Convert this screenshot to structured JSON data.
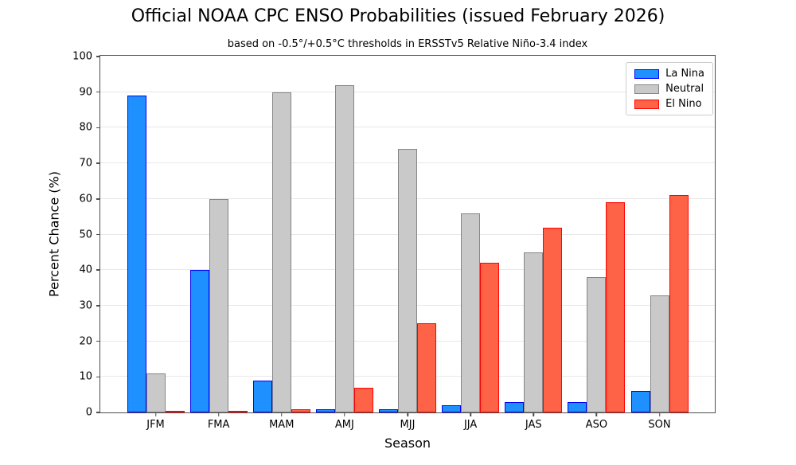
{
  "title": "Official NOAA CPC ENSO Probabilities (issued February 2026)",
  "subtitle": "based on -0.5°/+0.5°C thresholds in ERSSTv5 Relative Niño-3.4 index",
  "chart_data": {
    "type": "bar",
    "categories": [
      "JFM",
      "FMA",
      "MAM",
      "AMJ",
      "MJJ",
      "JJA",
      "JAS",
      "ASO",
      "SON"
    ],
    "series": [
      {
        "name": "La Nina",
        "fill": "#1e90ff",
        "edge": "#0000ff",
        "values": [
          89,
          40,
          9,
          1,
          1,
          2,
          3,
          3,
          6
        ]
      },
      {
        "name": "Neutral",
        "fill": "#c9c9c9",
        "edge": "#858585",
        "values": [
          11,
          60,
          90,
          92,
          74,
          56,
          45,
          38,
          33
        ]
      },
      {
        "name": "El Nino",
        "fill": "#ff6347",
        "edge": "#ff0000",
        "values": [
          0,
          0,
          1,
          7,
          25,
          42,
          52,
          59,
          61
        ]
      }
    ],
    "xlabel": "Season",
    "ylabel": "Percent Chance (%)",
    "ylim": [
      0,
      100
    ],
    "yticks": [
      0,
      10,
      20,
      30,
      40,
      50,
      60,
      70,
      80,
      90,
      100
    ],
    "grid": "horizontal",
    "legend_position": "upper right",
    "colors": {
      "grid": "#e8e8e8",
      "spine": "#4d4d4d",
      "background": "#ffffff"
    }
  }
}
